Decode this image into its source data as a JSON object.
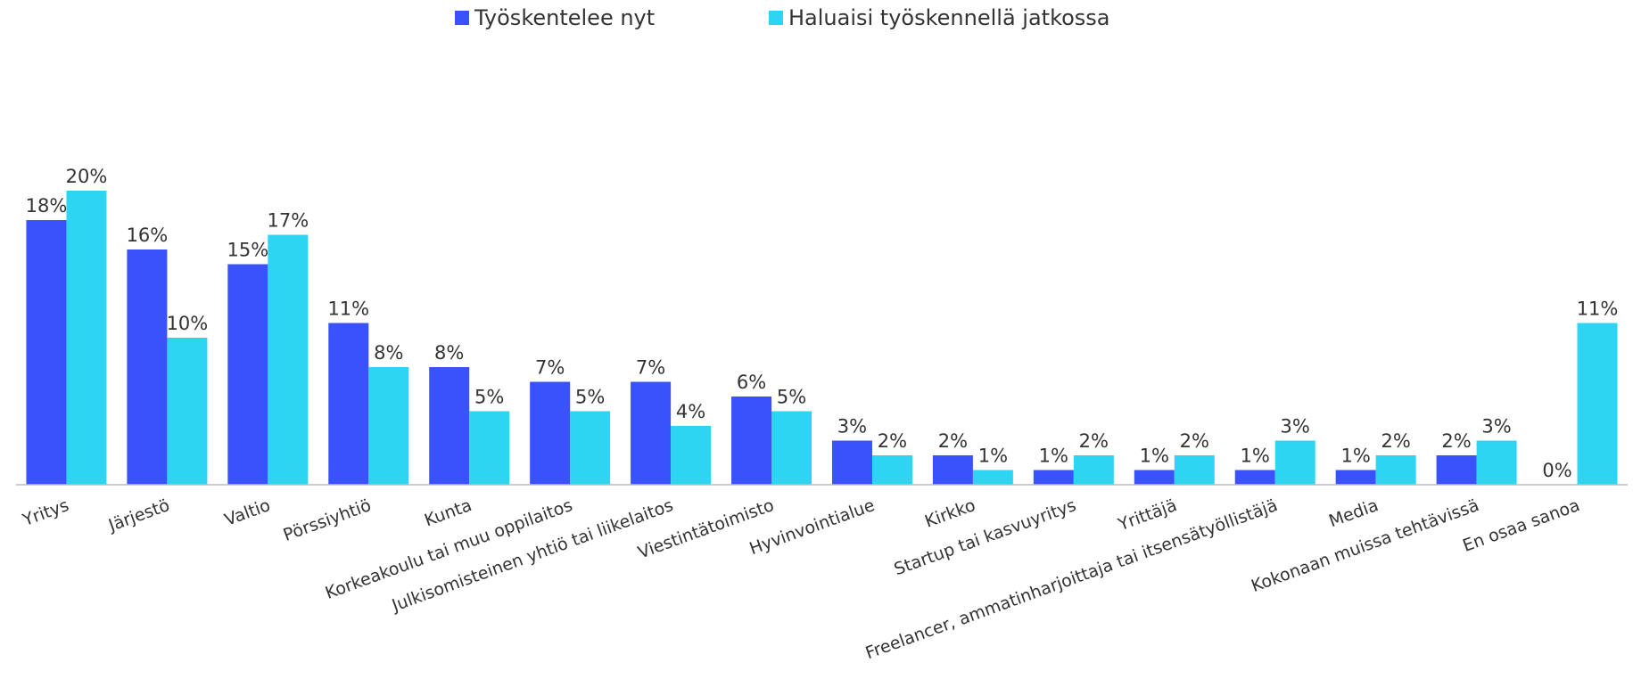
{
  "chart_data": {
    "type": "bar",
    "categories": [
      "Yritys",
      "Järjestö",
      "Valtio",
      "Pörssiyhtiö",
      "Kunta",
      "Korkeakoulu tai muu oppilaitos",
      "Julkisomisteinen yhtiö tai liikelaitos",
      "Viestintätoimisto",
      "Hyvinvointialue",
      "Kirkko",
      "Startup tai kasvuyritys",
      "Yrittäjä",
      "Freelancer, ammatinharjoittaja tai itsensätyöllistäjä",
      "Media",
      "Kokonaan muissa tehtävissä",
      "En osaa sanoa"
    ],
    "series": [
      {
        "name": "Työskentelee nyt",
        "color": "#3a52fb",
        "values": [
          18,
          16,
          15,
          11,
          8,
          7,
          7,
          6,
          3,
          2,
          1,
          1,
          1,
          1,
          2,
          0
        ],
        "value_labels": [
          "18%",
          "16%",
          "15%",
          "11%",
          "8%",
          "7%",
          "7%",
          "6%",
          "3%",
          "2%",
          "1%",
          "1%",
          "1%",
          "1%",
          "2%",
          "0%"
        ]
      },
      {
        "name": "Haluaisi työskennellä jatkossa",
        "color": "#2dd5f3",
        "values": [
          20,
          10,
          17,
          8,
          5,
          5,
          4,
          5,
          2,
          1,
          2,
          2,
          3,
          2,
          3,
          11
        ],
        "value_labels": [
          "20%",
          "10%",
          "17%",
          "8%",
          "5%",
          "5%",
          "4%",
          "5%",
          "2%",
          "1%",
          "2%",
          "2%",
          "3%",
          "2%",
          "3%",
          "11%"
        ]
      }
    ]
  }
}
